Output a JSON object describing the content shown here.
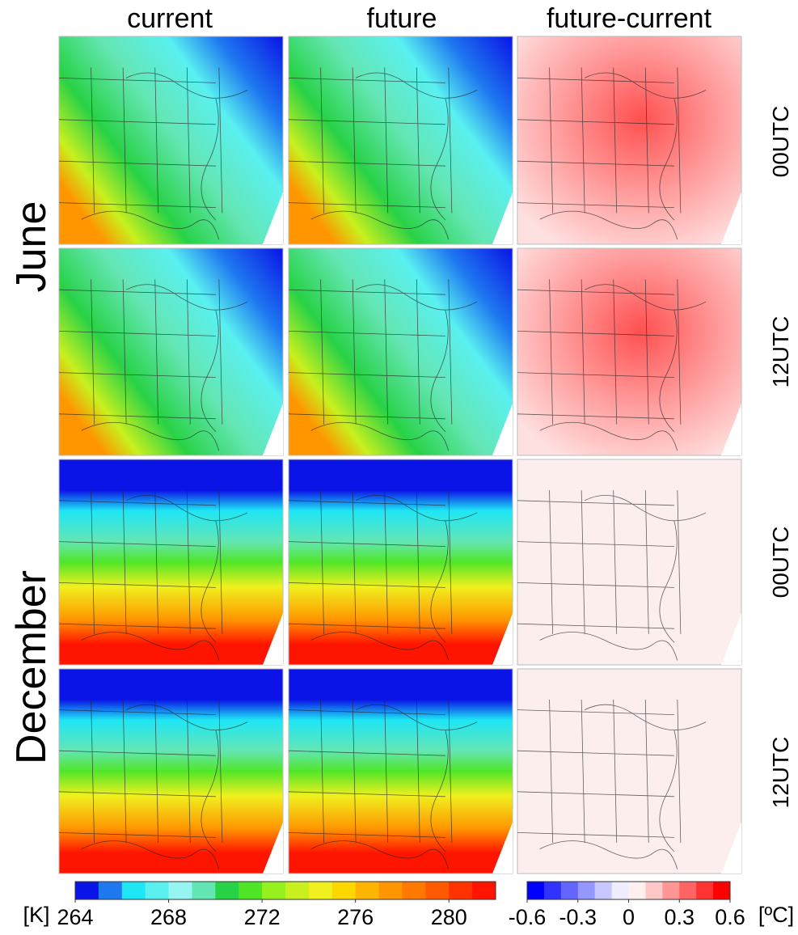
{
  "columns": [
    "current",
    "future",
    "future-current"
  ],
  "months": [
    "June",
    "December"
  ],
  "times": [
    "00UTC",
    "12UTC",
    "00UTC",
    "12UTC"
  ],
  "colorbars": [
    {
      "unit": "[K]",
      "lim": [
        264,
        282
      ],
      "ticks": [
        264,
        268,
        272,
        276,
        280
      ],
      "colors": [
        "#0a14e6",
        "#1e78f0",
        "#1ee6f5",
        "#5af0f0",
        "#96f5f0",
        "#64e6b4",
        "#28d246",
        "#50e628",
        "#96f01e",
        "#c8f01e",
        "#f0f01e",
        "#ffd700",
        "#ffb400",
        "#ff9600",
        "#ff7800",
        "#ff5a00",
        "#ff3200",
        "#ff1400"
      ]
    },
    {
      "unit": "[ºC]",
      "lim": [
        -0.6,
        0.6
      ],
      "ticks": [
        -0.6,
        -0.3,
        0,
        0.3,
        0.6
      ],
      "colors": [
        "#0000ff",
        "#3232ff",
        "#6464ff",
        "#9696ff",
        "#c8c8ff",
        "#eeeeff",
        "#fff0f0",
        "#ffc8c8",
        "#ff9696",
        "#ff6464",
        "#ff3232",
        "#ff0000"
      ]
    }
  ]
}
